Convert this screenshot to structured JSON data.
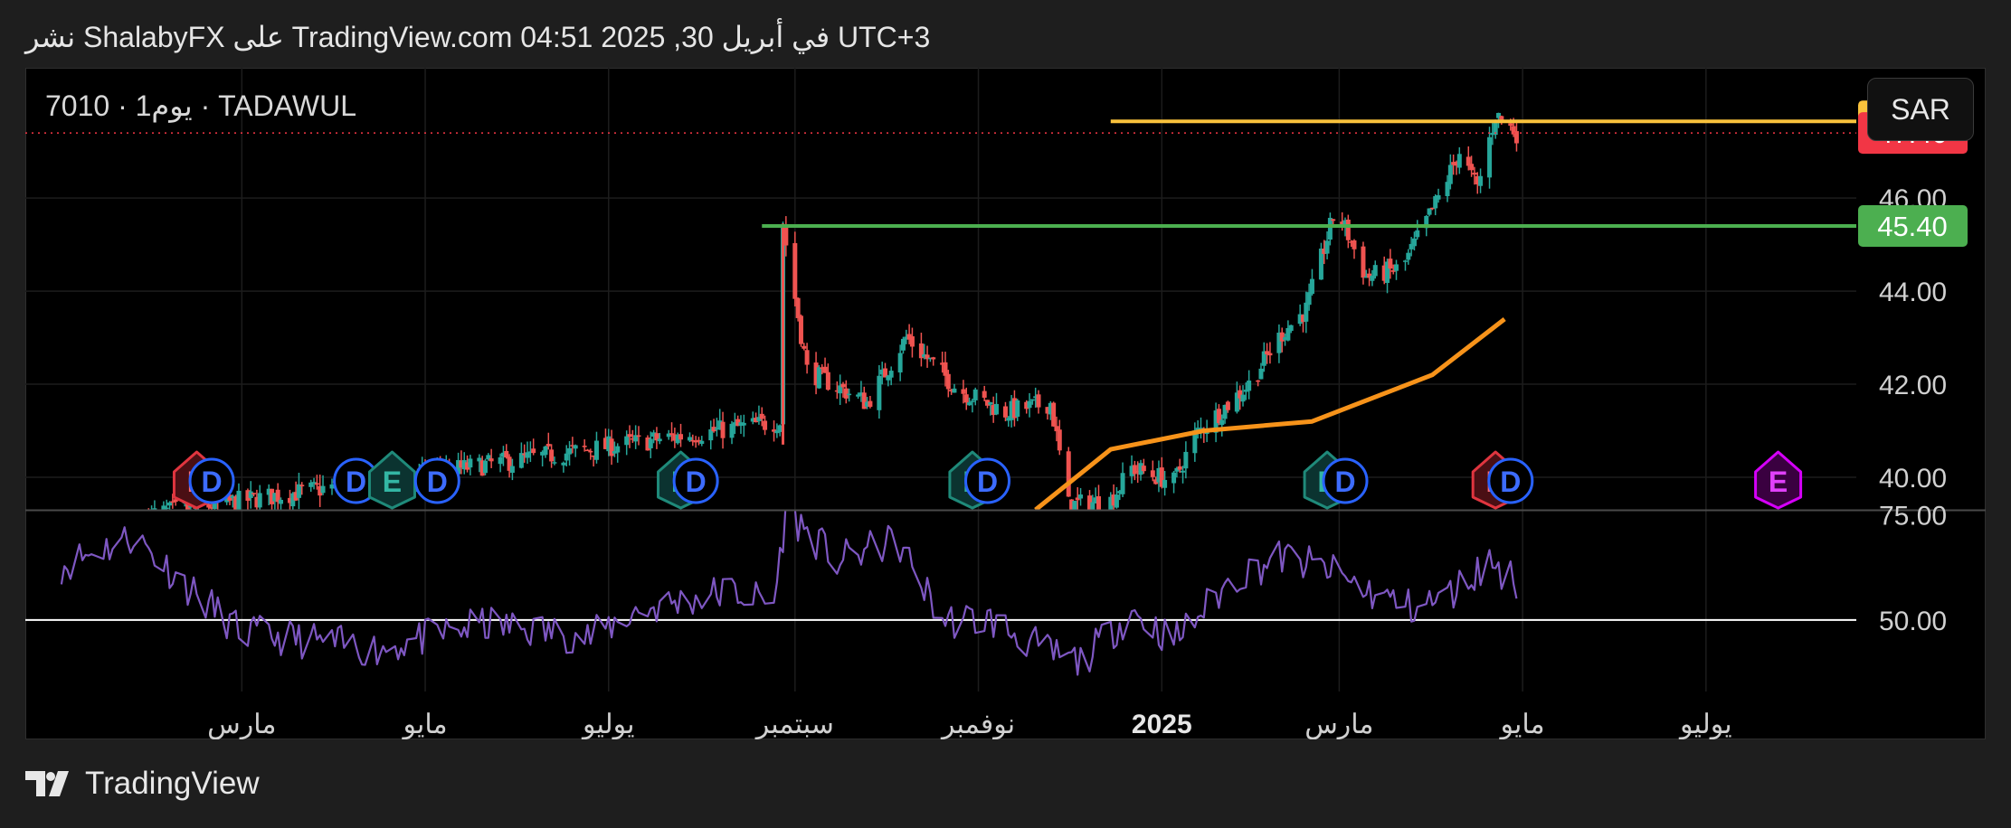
{
  "header": {
    "text": "نشر ShalabyFX على TradingView.com في أبريل 30, 2025 04:51 UTC+3"
  },
  "symbol_label": "7010 · 1يوم · TADAWUL",
  "currency_button": "SAR",
  "brand": {
    "name": "TradingView"
  },
  "colors": {
    "up": "#26a69a",
    "down": "#ef5350",
    "resistance": "#f9c23c",
    "support": "#4caf50",
    "ma": "#f7931a",
    "rsi": "#7e57c2",
    "last_price": "#f23645",
    "earnings_red": "#e0353f",
    "earnings_teal": "#1f8a7a",
    "dividend": "#2962ff",
    "magenta": "#d500f9"
  },
  "chart_data": [
    {
      "type": "candlestick",
      "title": "",
      "price_axis_ticks": [
        "40.00",
        "42.00",
        "44.00",
        "46.00"
      ],
      "ylim": [
        39.3,
        48.8
      ],
      "time_axis_labels": [
        "مارس",
        "مايو",
        "يوليو",
        "سبتمبر",
        "نوفمبر",
        "2025",
        "مارس",
        "مايو",
        "يوليو"
      ],
      "price_tags": [
        {
          "value": "47.65",
          "kind": "resistance"
        },
        {
          "value": "47.40",
          "kind": "last_price"
        },
        {
          "value": "45.40",
          "kind": "support"
        }
      ],
      "horizontal_lines": [
        {
          "name": "resistance",
          "value": 47.65,
          "from_date": "2024-12-15"
        },
        {
          "name": "support",
          "value": 45.4,
          "from_date": "2024-08-21"
        }
      ],
      "last_price": 47.4,
      "candles": [
        {
          "date": "2024-01-30",
          "close": 39.2
        },
        {
          "date": "2024-08-27",
          "close": 41.2
        },
        {
          "date": "2024-08-28",
          "close": 45.4
        },
        {
          "date": "2024-09-05",
          "close": 42.3
        },
        {
          "date": "2024-09-25",
          "close": 41.6
        },
        {
          "date": "2024-10-08",
          "close": 43.0
        },
        {
          "date": "2024-10-25",
          "close": 41.9
        },
        {
          "date": "2024-11-10",
          "close": 41.4
        },
        {
          "date": "2024-11-25",
          "close": 41.6
        },
        {
          "date": "2024-12-01",
          "close": 39.4
        },
        {
          "date": "2024-12-15",
          "close": 39.5
        },
        {
          "date": "2024-12-22",
          "close": 40.2
        },
        {
          "date": "2025-01-05",
          "close": 39.9
        },
        {
          "date": "2025-01-12",
          "close": 40.9
        },
        {
          "date": "2025-01-30",
          "close": 42.0
        },
        {
          "date": "2025-02-10",
          "close": 43.1
        },
        {
          "date": "2025-02-18",
          "close": 43.6
        },
        {
          "date": "2025-02-28",
          "close": 45.8
        },
        {
          "date": "2025-03-10",
          "close": 44.3
        },
        {
          "date": "2025-03-22",
          "close": 44.5
        },
        {
          "date": "2025-04-03",
          "close": 46.0
        },
        {
          "date": "2025-04-10",
          "close": 47.0
        },
        {
          "date": "2025-04-16",
          "close": 46.2
        },
        {
          "date": "2025-04-22",
          "close": 47.8
        },
        {
          "date": "2025-04-29",
          "close": 47.4
        }
      ],
      "moving_average": [
        {
          "date": "2024-11-20",
          "value": 39.3
        },
        {
          "date": "2024-12-15",
          "value": 40.6
        },
        {
          "date": "2025-01-15",
          "value": 41.0
        },
        {
          "date": "2025-02-20",
          "value": 41.2
        },
        {
          "date": "2025-03-20",
          "value": 41.9
        },
        {
          "date": "2025-04-01",
          "value": 42.2
        },
        {
          "date": "2025-04-25",
          "value": 43.4
        }
      ],
      "event_markers": [
        {
          "date": "2024-02-15",
          "label": "E",
          "kind": "earnings_red"
        },
        {
          "date": "2024-02-20",
          "label": "D",
          "kind": "dividend"
        },
        {
          "date": "2024-04-08",
          "label": "D",
          "kind": "dividend"
        },
        {
          "date": "2024-04-20",
          "label": "E",
          "kind": "earnings_teal"
        },
        {
          "date": "2024-05-05",
          "label": "D",
          "kind": "dividend"
        },
        {
          "date": "2024-07-25",
          "label": "E",
          "kind": "earnings_teal"
        },
        {
          "date": "2024-07-30",
          "label": "D",
          "kind": "dividend"
        },
        {
          "date": "2024-10-30",
          "label": "E",
          "kind": "earnings_teal"
        },
        {
          "date": "2024-11-04",
          "label": "D",
          "kind": "dividend"
        },
        {
          "date": "2025-02-25",
          "label": "E",
          "kind": "earnings_teal"
        },
        {
          "date": "2025-03-03",
          "label": "D",
          "kind": "dividend"
        },
        {
          "date": "2025-04-22",
          "label": "E",
          "kind": "earnings_red"
        },
        {
          "date": "2025-04-27",
          "label": "D",
          "kind": "dividend"
        },
        {
          "date": "2025-07-25",
          "label": "E",
          "kind": "magenta"
        }
      ]
    },
    {
      "type": "line",
      "title": "",
      "axis_ticks": [
        "75.00",
        "50.00"
      ],
      "ylim": [
        33,
        76
      ],
      "reference_line": 50,
      "x": [
        "2024-01-01",
        "2024-01-25",
        "2024-02-15",
        "2024-03-01",
        "2024-03-25",
        "2024-04-15",
        "2024-05-20",
        "2024-06-25",
        "2024-07-10",
        "2024-08-10",
        "2024-08-25",
        "2024-08-29",
        "2024-09-15",
        "2024-10-05",
        "2024-10-20",
        "2024-11-05",
        "2024-11-25",
        "2024-12-05",
        "2024-12-22",
        "2025-01-05",
        "2025-01-25",
        "2025-02-10",
        "2025-02-25",
        "2025-03-10",
        "2025-03-25",
        "2025-04-05",
        "2025-04-20",
        "2025-04-29"
      ],
      "values": [
        63,
        70,
        56,
        47,
        45,
        43,
        49,
        46,
        52,
        57,
        54,
        76,
        64,
        69,
        50,
        50,
        42,
        40,
        52,
        45,
        60,
        65,
        62,
        57,
        53,
        55,
        64,
        59
      ]
    }
  ]
}
